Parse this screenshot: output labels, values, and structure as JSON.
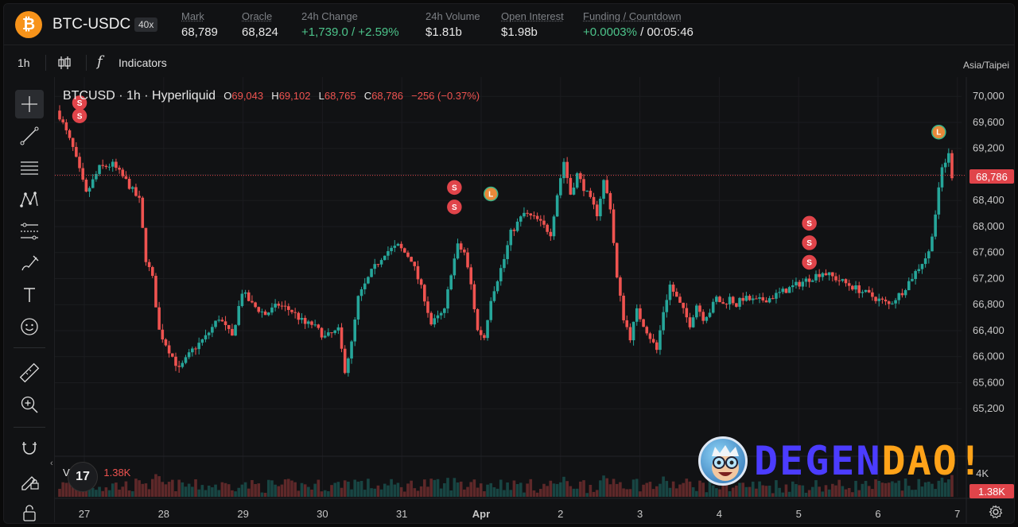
{
  "header": {
    "pair": "BTC-USDC",
    "leverage": "40x",
    "coin_icon": "bitcoin-icon",
    "stats": [
      {
        "label": "Mark",
        "value": "68,789",
        "dotted": true
      },
      {
        "label": "Oracle",
        "value": "68,824",
        "dotted": true
      },
      {
        "label": "24h Change",
        "value": "+1,739.0 / +2.59%",
        "positive": true
      },
      {
        "label": "24h Volume",
        "value": "$1.81b"
      },
      {
        "label": "Open Interest",
        "value": "$1.98b",
        "dotted": true
      },
      {
        "label": "Funding / Countdown",
        "value_pos": "+0.0003%",
        "value_rest": " / 00:05:46",
        "dotted": true
      }
    ]
  },
  "toolbar": {
    "interval": "1h",
    "fx": "f",
    "indicators_label": "Indicators",
    "timezone": "Asia/Taipei"
  },
  "sidebar_tools": [
    "crosshair-icon",
    "trendline-icon",
    "horizontal-lines-icon",
    "pattern-icon",
    "fib-icon",
    "brush-icon",
    "text-icon",
    "emoji-icon",
    "ruler-icon",
    "zoom-in-icon",
    "magnet-icon",
    "lock-edit-icon",
    "lock-icon"
  ],
  "legend": {
    "symbol": "BTCUSD · 1h · Hyperliquid",
    "o_key": "O",
    "o": "69,043",
    "h_key": "H",
    "h": "69,102",
    "l_key": "L",
    "l": "68,765",
    "c_key": "C",
    "c": "68,786",
    "change": "−256 (−0.37%)"
  },
  "volume": {
    "label": "Volume",
    "value": "1.38K",
    "axis_label": "4K",
    "tag": "1.38K"
  },
  "tv_logo": "17",
  "last_price_tag": "68,786",
  "watermark": {
    "part1": "DEGEN",
    "part2": "DAO!"
  },
  "chart_data": {
    "type": "candlestick",
    "y_ticks": [
      "70,000",
      "69,600",
      "69,200",
      "68,800",
      "68,400",
      "68,000",
      "67,600",
      "67,200",
      "66,800",
      "66,400",
      "66,000",
      "65,600",
      "65,200"
    ],
    "ylim": [
      64800,
      70100
    ],
    "x_ticks": [
      "27",
      "28",
      "29",
      "30",
      "31",
      "Apr",
      "2",
      "3",
      "4",
      "5",
      "6",
      "7"
    ],
    "last_price": 68786,
    "colors": {
      "up": "#26a69a",
      "down": "#ef5350"
    },
    "close_path": [
      [
        0,
        69700
      ],
      [
        4,
        69200
      ],
      [
        8,
        68500
      ],
      [
        12,
        68900
      ],
      [
        16,
        68950
      ],
      [
        20,
        68700
      ],
      [
        24,
        68400
      ],
      [
        26,
        67500
      ],
      [
        28,
        67200
      ],
      [
        30,
        66400
      ],
      [
        33,
        66100
      ],
      [
        36,
        65800
      ],
      [
        40,
        66100
      ],
      [
        44,
        66300
      ],
      [
        48,
        66600
      ],
      [
        52,
        66300
      ],
      [
        55,
        67000
      ],
      [
        58,
        66800
      ],
      [
        62,
        66650
      ],
      [
        66,
        66800
      ],
      [
        70,
        66700
      ],
      [
        74,
        66500
      ],
      [
        76,
        66500
      ],
      [
        80,
        66300
      ],
      [
        84,
        66400
      ],
      [
        86,
        65800
      ],
      [
        88,
        66200
      ],
      [
        90,
        66900
      ],
      [
        94,
        67300
      ],
      [
        98,
        67600
      ],
      [
        102,
        67700
      ],
      [
        106,
        67500
      ],
      [
        110,
        66900
      ],
      [
        112,
        66500
      ],
      [
        116,
        66700
      ],
      [
        118,
        67300
      ],
      [
        120,
        67700
      ],
      [
        122,
        67600
      ],
      [
        124,
        67100
      ],
      [
        126,
        66400
      ],
      [
        128,
        66300
      ],
      [
        130,
        66900
      ],
      [
        134,
        67500
      ],
      [
        136,
        67900
      ],
      [
        140,
        68200
      ],
      [
        144,
        68100
      ],
      [
        148,
        67900
      ],
      [
        150,
        68500
      ],
      [
        152,
        69000
      ],
      [
        154,
        68500
      ],
      [
        156,
        68800
      ],
      [
        158,
        68600
      ],
      [
        160,
        68400
      ],
      [
        162,
        68200
      ],
      [
        164,
        68700
      ],
      [
        166,
        68300
      ],
      [
        168,
        67200
      ],
      [
        170,
        66600
      ],
      [
        172,
        66300
      ],
      [
        174,
        66700
      ],
      [
        176,
        66500
      ],
      [
        178,
        66300
      ],
      [
        180,
        66100
      ],
      [
        182,
        66700
      ],
      [
        184,
        67100
      ],
      [
        186,
        66900
      ],
      [
        188,
        66700
      ],
      [
        190,
        66500
      ],
      [
        192,
        66800
      ],
      [
        194,
        66600
      ],
      [
        196,
        66700
      ],
      [
        198,
        66900
      ],
      [
        200,
        66800
      ],
      [
        202,
        66900
      ],
      [
        204,
        66800
      ],
      [
        206,
        66900
      ],
      [
        210,
        66850
      ],
      [
        214,
        66900
      ],
      [
        218,
        67000
      ],
      [
        222,
        67100
      ],
      [
        226,
        67200
      ],
      [
        230,
        67300
      ],
      [
        234,
        67200
      ],
      [
        238,
        67100
      ],
      [
        242,
        67000
      ],
      [
        246,
        66900
      ],
      [
        250,
        66800
      ],
      [
        254,
        67000
      ],
      [
        258,
        67300
      ],
      [
        262,
        67600
      ],
      [
        264,
        68200
      ],
      [
        266,
        68900
      ],
      [
        268,
        69100
      ],
      [
        269,
        68786
      ]
    ],
    "marker_groups": [
      {
        "candle": 6,
        "prices": [
          69900,
          69700
        ],
        "labels": [
          "S",
          "S"
        ],
        "type": "sell"
      },
      {
        "candle": 119,
        "prices": [
          68600,
          68300
        ],
        "labels": [
          "S",
          "S"
        ],
        "type": "sell"
      },
      {
        "candle": 130,
        "prices": [
          68500
        ],
        "labels": [
          "L"
        ],
        "type": "long"
      },
      {
        "candle": 226,
        "prices": [
          68050,
          67750,
          67450
        ],
        "labels": [
          "S",
          "S",
          "S"
        ],
        "type": "sell"
      },
      {
        "candle": 265,
        "prices": [
          69450
        ],
        "labels": [
          "L"
        ],
        "type": "long"
      }
    ]
  }
}
